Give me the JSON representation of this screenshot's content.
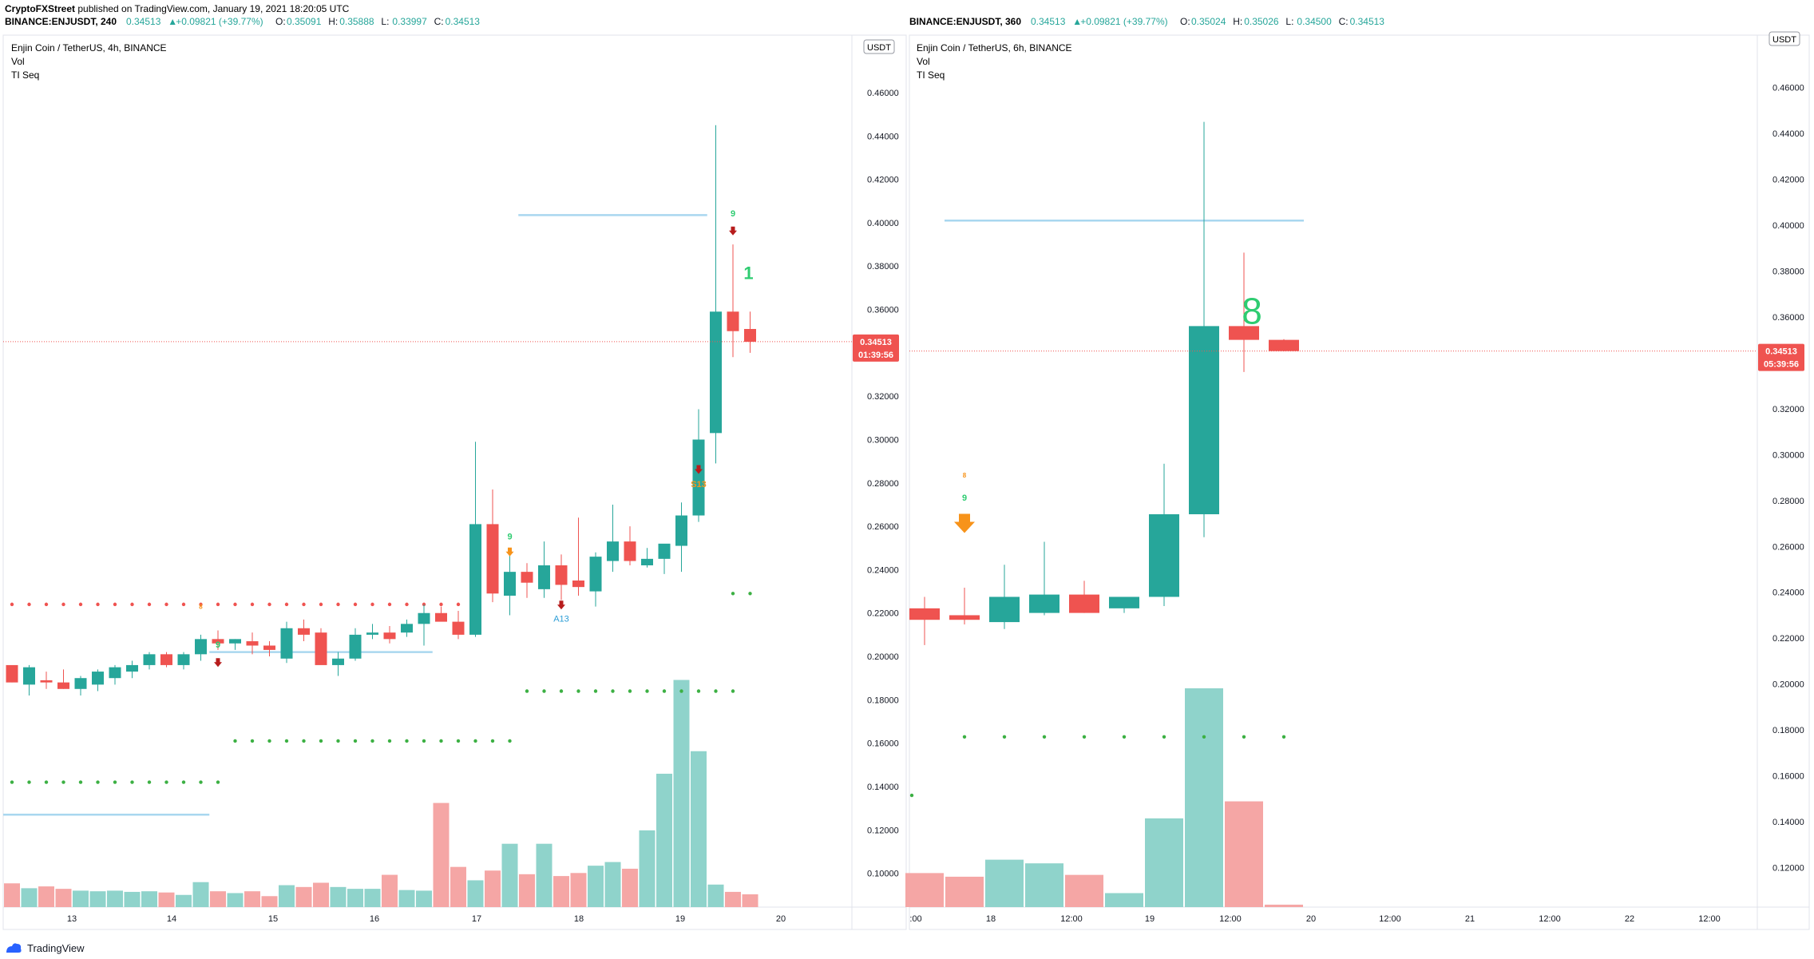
{
  "publish_line": {
    "author": "CryptoFXStreet",
    "rest": " published on TradingView.com, January 19, 2021 18:20:05 UTC"
  },
  "footer": {
    "brand": "TradingView"
  },
  "colors": {
    "up": "#26a69a",
    "down": "#ef5350",
    "vol_up": "#8fd3cb",
    "vol_down": "#f5a6a5",
    "level": "#a9d7ef",
    "green_dot": "#3cb043",
    "red_dot": "#ef5350",
    "seq_green": "#2ecc71",
    "seq_orange": "#f7931a",
    "arrow_down": "#b71c1c",
    "seq_blue": "#2b9dd6"
  },
  "chart_data": [
    {
      "type": "candlestick",
      "header": {
        "symbol": "BINANCE:ENJUSDT, 240",
        "values": [
          {
            "label": "",
            "value": "0.34513"
          },
          {
            "label": "▲",
            "value": "+0.09821 (+39.77%)"
          },
          {
            "label": "O:",
            "value": "0.35091"
          },
          {
            "label": "H:",
            "value": "0.35888"
          },
          {
            "label": "L:",
            "value": "0.33997"
          },
          {
            "label": "C:",
            "value": "0.34513"
          }
        ]
      },
      "title": "Enjin Coin / TetherUS, 4h, BINANCE",
      "legend": [
        "Vol",
        "TI Seq"
      ],
      "currency_badge": "USDT",
      "yticks": [
        "0.46000",
        "0.44000",
        "0.42000",
        "0.40000",
        "0.38000",
        "0.36000",
        "0.32000",
        "0.30000",
        "0.28000",
        "0.26000",
        "0.24000",
        "0.22000",
        "0.20000",
        "0.18000",
        "0.16000",
        "0.14000",
        "0.12000",
        "0.10000"
      ],
      "ylim": [
        0.0844,
        0.4865
      ],
      "xticks": [
        "13",
        "14",
        "15",
        "16",
        "17",
        "18",
        "19",
        "20"
      ],
      "last_price": "0.34513",
      "countdown": "01:39:56",
      "candles": [
        [
          0.196,
          0.195,
          0.188,
          0.188
        ],
        [
          0.187,
          0.196,
          0.182,
          0.195
        ],
        [
          0.189,
          0.193,
          0.185,
          0.188
        ],
        [
          0.188,
          0.194,
          0.185,
          0.185
        ],
        [
          0.185,
          0.191,
          0.182,
          0.19
        ],
        [
          0.187,
          0.194,
          0.184,
          0.193
        ],
        [
          0.19,
          0.196,
          0.187,
          0.195
        ],
        [
          0.193,
          0.198,
          0.19,
          0.196
        ],
        [
          0.196,
          0.202,
          0.194,
          0.201
        ],
        [
          0.201,
          0.202,
          0.195,
          0.196
        ],
        [
          0.196,
          0.202,
          0.194,
          0.201
        ],
        [
          0.201,
          0.21,
          0.198,
          0.208
        ],
        [
          0.208,
          0.212,
          0.203,
          0.206
        ],
        [
          0.206,
          0.208,
          0.203,
          0.208
        ],
        [
          0.207,
          0.211,
          0.201,
          0.205
        ],
        [
          0.205,
          0.207,
          0.2,
          0.203
        ],
        [
          0.199,
          0.216,
          0.197,
          0.213
        ],
        [
          0.213,
          0.217,
          0.207,
          0.21
        ],
        [
          0.211,
          0.213,
          0.197,
          0.196
        ],
        [
          0.196,
          0.202,
          0.191,
          0.199
        ],
        [
          0.199,
          0.213,
          0.198,
          0.21
        ],
        [
          0.21,
          0.215,
          0.208,
          0.211
        ],
        [
          0.211,
          0.214,
          0.206,
          0.208
        ],
        [
          0.211,
          0.217,
          0.209,
          0.215
        ],
        [
          0.215,
          0.224,
          0.205,
          0.22
        ],
        [
          0.22,
          0.223,
          0.217,
          0.216
        ],
        [
          0.216,
          0.221,
          0.208,
          0.21
        ],
        [
          0.21,
          0.299,
          0.209,
          0.261
        ],
        [
          0.261,
          0.277,
          0.225,
          0.229
        ],
        [
          0.228,
          0.25,
          0.219,
          0.239
        ],
        [
          0.239,
          0.243,
          0.227,
          0.234
        ],
        [
          0.231,
          0.253,
          0.227,
          0.242
        ],
        [
          0.242,
          0.247,
          0.226,
          0.233
        ],
        [
          0.235,
          0.264,
          0.228,
          0.232
        ],
        [
          0.23,
          0.248,
          0.223,
          0.246
        ],
        [
          0.244,
          0.27,
          0.239,
          0.253
        ],
        [
          0.253,
          0.26,
          0.242,
          0.244
        ],
        [
          0.242,
          0.25,
          0.241,
          0.245
        ],
        [
          0.245,
          0.25,
          0.238,
          0.252
        ],
        [
          0.251,
          0.271,
          0.239,
          0.265
        ],
        [
          0.265,
          0.314,
          0.262,
          0.3
        ],
        [
          0.303,
          0.445,
          0.289,
          0.359
        ],
        [
          0.359,
          0.39,
          0.338,
          0.35
        ],
        [
          0.351,
          0.359,
          0.34,
          0.3451
        ]
      ],
      "volume_range": [
        0,
        0.375
      ],
      "volumes": [
        0.039,
        0.031,
        0.034,
        0.03,
        0.027,
        0.026,
        0.027,
        0.025,
        0.026,
        0.024,
        0.02,
        0.041,
        0.026,
        0.023,
        0.026,
        0.018,
        0.036,
        0.033,
        0.04,
        0.033,
        0.03,
        0.03,
        0.053,
        0.028,
        0.027,
        0.171,
        0.066,
        0.044,
        0.06,
        0.104,
        0.054,
        0.104,
        0.051,
        0.056,
        0.068,
        0.074,
        0.063,
        0.126,
        0.219,
        0.373,
        0.256,
        0.037,
        0.025,
        0.021
      ],
      "levels": [
        {
          "price": 0.4035,
          "from": 30,
          "to": 40
        },
        {
          "price": 0.202,
          "from": 12,
          "to": 24
        },
        {
          "price": 0.127,
          "from": -1,
          "to": 11
        }
      ],
      "dot_rows": [
        {
          "price": 0.224,
          "color": "red",
          "from": 0,
          "to": 26
        },
        {
          "price": 0.184,
          "color": "green",
          "from": 30,
          "to": 42
        },
        {
          "price": 0.161,
          "color": "green",
          "from": 13,
          "to": 29
        },
        {
          "price": 0.142,
          "color": "green",
          "from": 0,
          "to": 12
        },
        {
          "price": 0.229,
          "color": "green",
          "from": 42,
          "to": 43
        }
      ],
      "seq_labels": [
        {
          "i": 12,
          "text": "9",
          "price": 0.204,
          "color": "green"
        },
        {
          "i": 11,
          "text": "8",
          "price": 0.222,
          "color": "orange_small"
        },
        {
          "i": 29,
          "text": "9",
          "price": 0.254,
          "color": "green"
        },
        {
          "i": 42,
          "text": "9",
          "price": 0.403,
          "color": "green"
        },
        {
          "i": 40,
          "text": "S13",
          "price": 0.278,
          "color": "orange"
        },
        {
          "i": 32,
          "text": "A13",
          "price": 0.216,
          "color": "blue"
        },
        {
          "i": 43,
          "text": "1",
          "price": 0.374,
          "color": "green_big"
        }
      ],
      "seq_arrows": [
        {
          "i": 12,
          "price": 0.197,
          "color": "dark"
        },
        {
          "i": 29,
          "price": 0.248,
          "color": "orange"
        },
        {
          "i": 32,
          "price": 0.2235,
          "color": "dark"
        },
        {
          "i": 40,
          "price": 0.286,
          "color": "dark"
        },
        {
          "i": 42,
          "price": 0.396,
          "color": "dark"
        }
      ]
    },
    {
      "type": "candlestick",
      "header": {
        "symbol": "BINANCE:ENJUSDT, 360",
        "values": [
          {
            "label": "",
            "value": "0.34513"
          },
          {
            "label": "▲",
            "value": "+0.09821 (+39.77%)"
          },
          {
            "label": "O:",
            "value": "0.35024"
          },
          {
            "label": "H:",
            "value": "0.35026"
          },
          {
            "label": "L:",
            "value": "0.34500"
          },
          {
            "label": "C:",
            "value": "0.34513"
          }
        ]
      },
      "title": "Enjin Coin / TetherUS, 6h, BINANCE",
      "legend": [
        "Vol",
        "TI Seq"
      ],
      "currency_badge": "USDT",
      "yticks": [
        "0.46000",
        "0.44000",
        "0.42000",
        "0.40000",
        "0.38000",
        "0.36000",
        "0.32000",
        "0.30000",
        "0.28000",
        "0.26000",
        "0.24000",
        "0.22000",
        "0.20000",
        "0.18000",
        "0.16000",
        "0.14000",
        "0.12000"
      ],
      "ylim": [
        0.1028,
        0.4828
      ],
      "xticks": [
        ":00",
        "18",
        "12:00",
        "19",
        "12:00",
        "20",
        "12:00",
        "21",
        "12:00",
        "22",
        "12:00"
      ],
      "last_price": "0.34513",
      "countdown": "05:39:56",
      "candles": [
        [
          0.233,
          0.238,
          0.217,
          0.228
        ],
        [
          0.23,
          0.242,
          0.226,
          0.228
        ],
        [
          0.227,
          0.252,
          0.224,
          0.238
        ],
        [
          0.231,
          0.262,
          0.23,
          0.239
        ],
        [
          0.239,
          0.245,
          0.231,
          0.231
        ],
        [
          0.233,
          0.238,
          0.231,
          0.238
        ],
        [
          0.238,
          0.296,
          0.234,
          0.274
        ],
        [
          0.274,
          0.445,
          0.264,
          0.356
        ],
        [
          0.356,
          0.388,
          0.336,
          0.35
        ],
        [
          0.35,
          0.3503,
          0.345,
          0.3451
        ]
      ],
      "volume_range": [
        0,
        0.36
      ],
      "volumes": [
        0.056,
        0.05,
        0.078,
        0.072,
        0.053,
        0.023,
        0.146,
        0.36,
        0.174,
        0.004
      ],
      "levels": [
        {
          "price": 0.402,
          "from": 1,
          "to": 9
        }
      ],
      "dot_rows": [
        {
          "price": 0.177,
          "color": "green",
          "from": 1,
          "to": 9
        },
        {
          "price": 0.1515,
          "color": "green",
          "from": -1,
          "to": -1
        }
      ],
      "seq_labels": [
        {
          "i": 1,
          "text": "9",
          "price": 0.28,
          "color": "green"
        },
        {
          "i": 1,
          "text": "8",
          "price": 0.29,
          "color": "orange_small"
        },
        {
          "i": 9,
          "text": "8",
          "price": 0.357,
          "color": "green_huge"
        }
      ],
      "seq_arrows": [
        {
          "i": 1,
          "price": 0.27,
          "color": "orange_big"
        }
      ]
    }
  ]
}
